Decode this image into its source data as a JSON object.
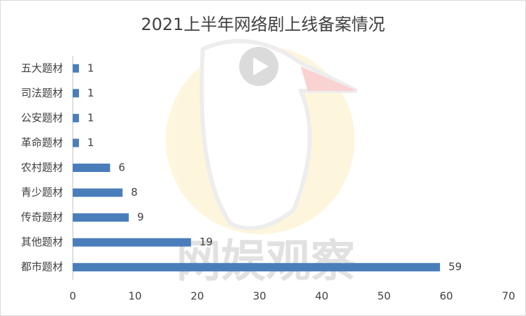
{
  "chart_data": {
    "type": "barh",
    "title": "2021上半年网络剧上线备案情况",
    "categories": [
      "五大题材",
      "司法题材",
      "公安题材",
      "革命题材",
      "农村题材",
      "青少题材",
      "传奇题材",
      "其他题材",
      "都市题材"
    ],
    "values": [
      1,
      1,
      1,
      1,
      6,
      8,
      9,
      19,
      59
    ],
    "color": "#4a7ebb",
    "xlim": [
      0,
      70
    ],
    "xticks": [
      0,
      10,
      20,
      30,
      40,
      50,
      60,
      70
    ],
    "grid": false,
    "watermark": "网娱观察"
  }
}
